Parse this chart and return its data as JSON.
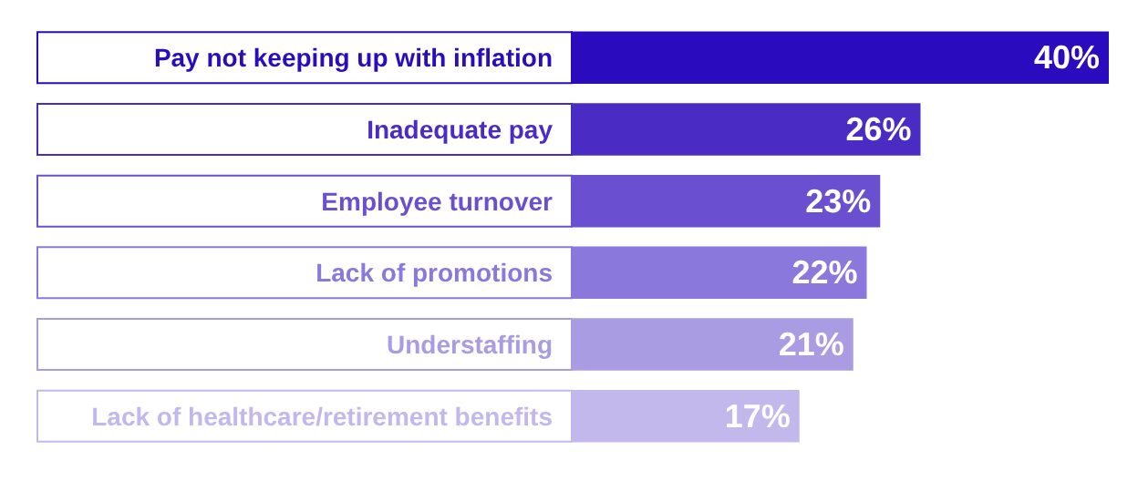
{
  "chart_data": {
    "type": "bar",
    "orientation": "horizontal",
    "categories": [
      "Pay not keeping up with inflation",
      "Inadequate pay",
      "Employee turnover",
      "Lack of promotions",
      "Understaffing",
      "Lack of healthcare/retirement benefits"
    ],
    "values": [
      40,
      26,
      23,
      22,
      21,
      17
    ],
    "colors": [
      "#2a0bbd",
      "#4a2bc4",
      "#6a50d0",
      "#8a78dc",
      "#aa9ce3",
      "#c3b8ec"
    ],
    "value_labels": [
      "40%",
      "26%",
      "23%",
      "22%",
      "21%",
      "17%"
    ],
    "xlim": [
      0,
      40
    ]
  }
}
